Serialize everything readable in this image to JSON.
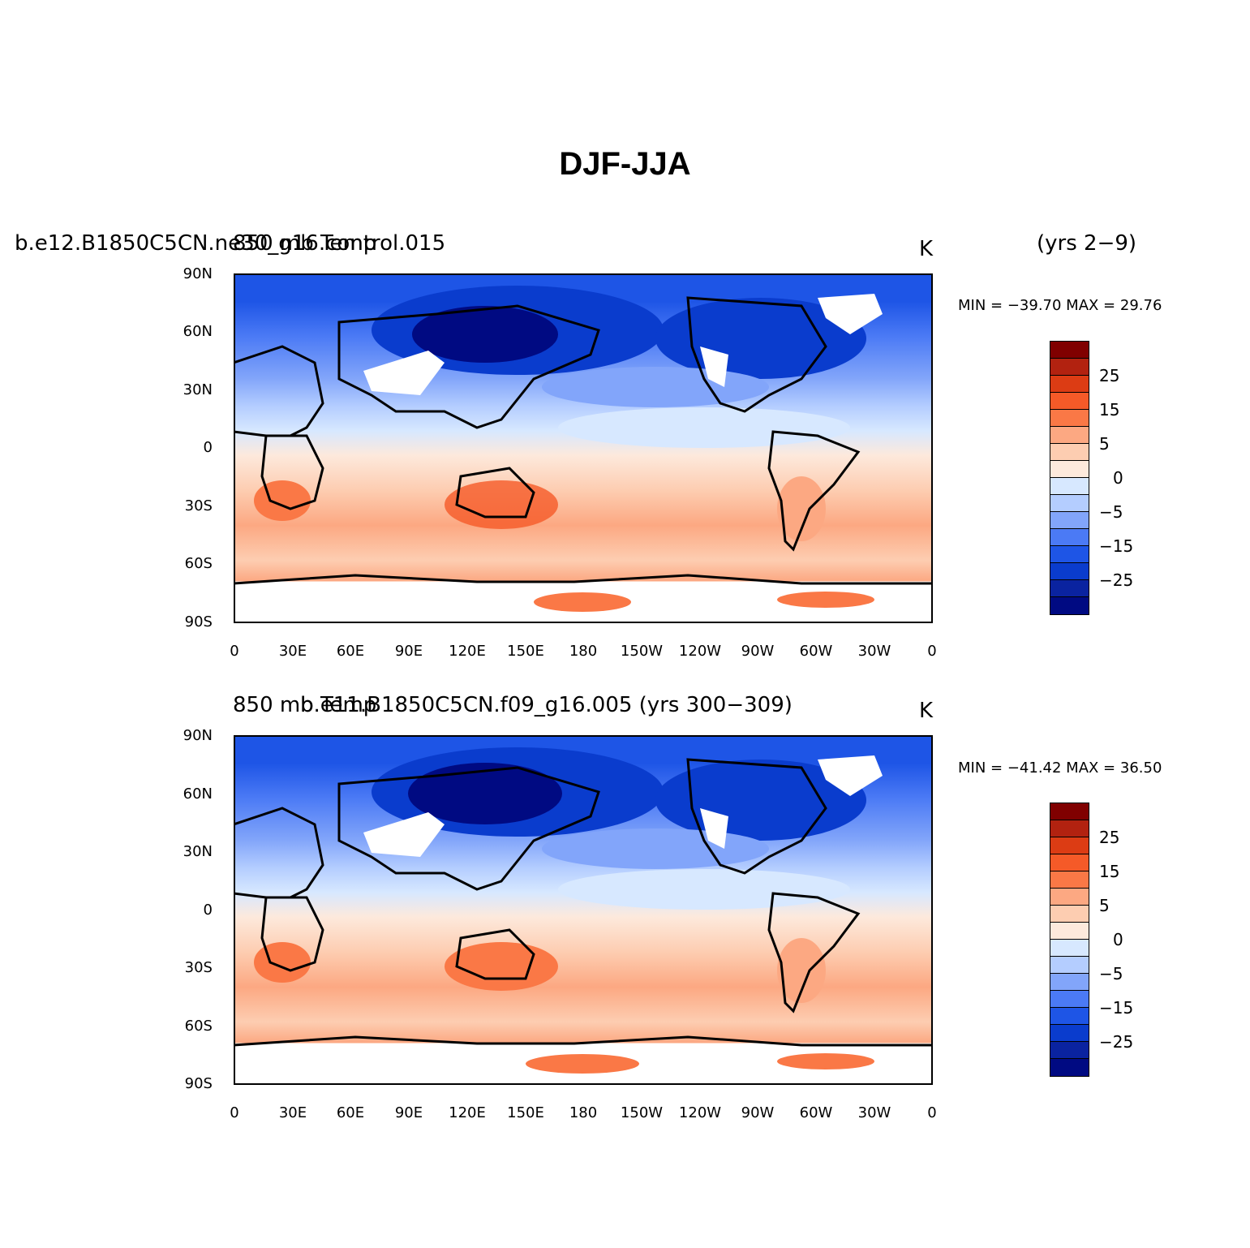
{
  "title": "DJF-JJA",
  "panels": [
    {
      "left_title": "b.e12.B1850C5CN.ne30_g16.control.015",
      "overlap_title": "850 mb Temp",
      "units": "K",
      "years": "(yrs 2−9)",
      "minmax": "MIN = −39.70 MAX =  29.76"
    },
    {
      "left_title": "850 mb Temp",
      "overlap_title": "b.e11.B1850C5CN.f09_g16.005 (yrs 300−309)",
      "units": "K",
      "years": "",
      "minmax": "MIN = −41.42 MAX =  36.50"
    }
  ],
  "axes": {
    "lat_labels": [
      "90N",
      "60N",
      "30N",
      "0",
      "30S",
      "60S",
      "90S"
    ],
    "lon_labels": [
      "0",
      "30E",
      "60E",
      "90E",
      "120E",
      "150E",
      "180",
      "150W",
      "120W",
      "90W",
      "60W",
      "30W",
      "0"
    ]
  },
  "colorbar": {
    "colors": [
      "#800000",
      "#b22210",
      "#dc3c14",
      "#f55a28",
      "#fa7846",
      "#fca882",
      "#fdcdb1",
      "#fde9dc",
      "#d7e8ff",
      "#b4cdff",
      "#82a5fa",
      "#4b7af5",
      "#1e55e6",
      "#0a3ccd",
      "#0a23a0",
      "#000a82"
    ],
    "labels": [
      "25",
      "15",
      "5",
      "0",
      "−5",
      "−15",
      "−25"
    ]
  },
  "chart_data": {
    "type": "heatmap",
    "variable": "850 mb Temp",
    "units": "K",
    "contour_levels": [
      -35,
      -30,
      -25,
      -20,
      -15,
      -10,
      -5,
      0,
      5,
      10,
      15,
      20,
      25,
      30,
      35
    ],
    "lon_range": [
      0,
      360
    ],
    "lat_range": [
      -90,
      90
    ],
    "panels": [
      {
        "case": "b.e12.B1850C5CN.ne30_g16.control.015",
        "years": "(yrs 2−9)",
        "min": -39.7,
        "max": 29.76
      },
      {
        "case": "b.e11.B1850C5CN.f09_g16.005",
        "years": "(yrs 300−309)",
        "min": -41.42,
        "max": 36.5
      }
    ]
  }
}
